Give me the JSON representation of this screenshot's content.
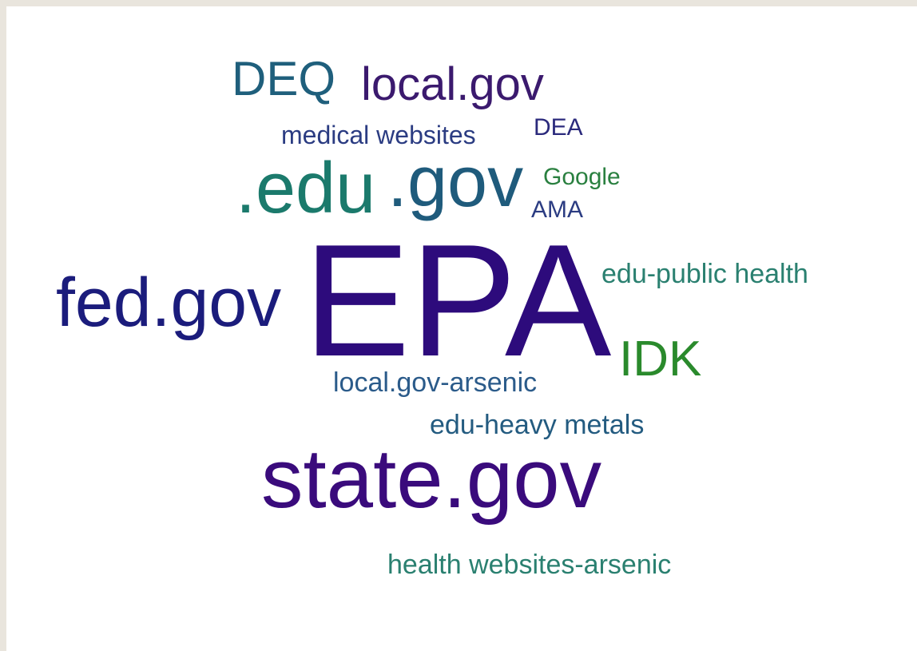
{
  "words": [
    "DEQ",
    "local.gov",
    "medical websites",
    "DEA",
    ".edu",
    ".gov",
    "Google",
    "AMA",
    "EPA",
    "fed.gov",
    "edu-public health",
    "IDK",
    "local.gov-arsenic",
    "edu-heavy metals",
    "state.gov",
    "health websites-arsenic"
  ]
}
